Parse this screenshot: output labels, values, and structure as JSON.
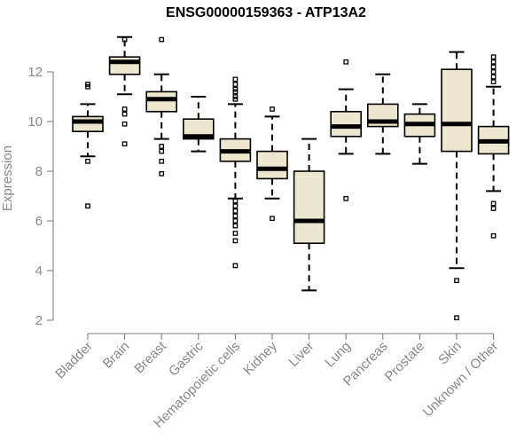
{
  "chart_data": {
    "type": "boxplot",
    "title": "ENSG00000159363 - ATP13A2",
    "ylabel": "Expression",
    "xlabel": "",
    "ylim": [
      2,
      13.4
    ],
    "yticks": [
      2,
      4,
      6,
      8,
      10,
      12
    ],
    "grid": false,
    "legend": "none",
    "colors": {
      "box_fill": "#ede7cf",
      "stroke": "#000000",
      "axis": "#777777",
      "tick_label": "#888888"
    },
    "categories": [
      "Bladder",
      "Brain",
      "Breast",
      "Gastric",
      "Hematopoietic cells",
      "Kidney",
      "Liver",
      "Lung",
      "Pancreas",
      "Prostate",
      "Skin",
      "Unknown / Other"
    ],
    "boxes": [
      {
        "q1": 9.6,
        "median": 10.0,
        "q3": 10.2,
        "whisker_low": 8.6,
        "whisker_high": 10.7,
        "outliers": [
          11.5,
          11.4,
          8.4,
          6.6
        ]
      },
      {
        "q1": 11.9,
        "median": 12.4,
        "q3": 12.6,
        "whisker_low": 11.1,
        "whisker_high": 13.4,
        "outliers": [
          13.3,
          10.5,
          10.3,
          9.9,
          9.1
        ]
      },
      {
        "q1": 10.4,
        "median": 10.9,
        "q3": 11.2,
        "whisker_low": 9.3,
        "whisker_high": 11.9,
        "outliers": [
          13.3,
          9.0,
          8.8,
          8.4,
          7.9
        ]
      },
      {
        "q1": 9.3,
        "median": 9.4,
        "q3": 10.1,
        "whisker_low": 8.8,
        "whisker_high": 11.0,
        "outliers": []
      },
      {
        "q1": 8.4,
        "median": 8.8,
        "q3": 9.3,
        "whisker_low": 6.9,
        "whisker_high": 10.7,
        "outliers": [
          11.7,
          11.5,
          11.3,
          11.2,
          11.0,
          10.9,
          6.8,
          6.6,
          6.4,
          6.2,
          6.0,
          5.8,
          5.5,
          5.2,
          4.2
        ]
      },
      {
        "q1": 7.7,
        "median": 8.1,
        "q3": 8.8,
        "whisker_low": 6.9,
        "whisker_high": 10.2,
        "outliers": [
          10.5,
          6.1
        ]
      },
      {
        "q1": 5.1,
        "median": 6.0,
        "q3": 8.0,
        "whisker_low": 3.2,
        "whisker_high": 9.3,
        "outliers": []
      },
      {
        "q1": 9.4,
        "median": 9.8,
        "q3": 10.4,
        "whisker_low": 8.7,
        "whisker_high": 11.3,
        "outliers": [
          12.4,
          6.9
        ]
      },
      {
        "q1": 9.8,
        "median": 10.0,
        "q3": 10.7,
        "whisker_low": 8.7,
        "whisker_high": 11.9,
        "outliers": []
      },
      {
        "q1": 9.4,
        "median": 9.9,
        "q3": 10.3,
        "whisker_low": 8.3,
        "whisker_high": 10.7,
        "outliers": []
      },
      {
        "q1": 8.8,
        "median": 9.9,
        "q3": 12.1,
        "whisker_low": 4.1,
        "whisker_high": 12.8,
        "outliers": [
          3.6,
          2.1
        ]
      },
      {
        "q1": 8.7,
        "median": 9.2,
        "q3": 9.8,
        "whisker_low": 7.2,
        "whisker_high": 11.4,
        "outliers": [
          12.6,
          12.4,
          12.2,
          12.0,
          11.8,
          11.6,
          6.7,
          6.5,
          5.4
        ]
      }
    ]
  }
}
